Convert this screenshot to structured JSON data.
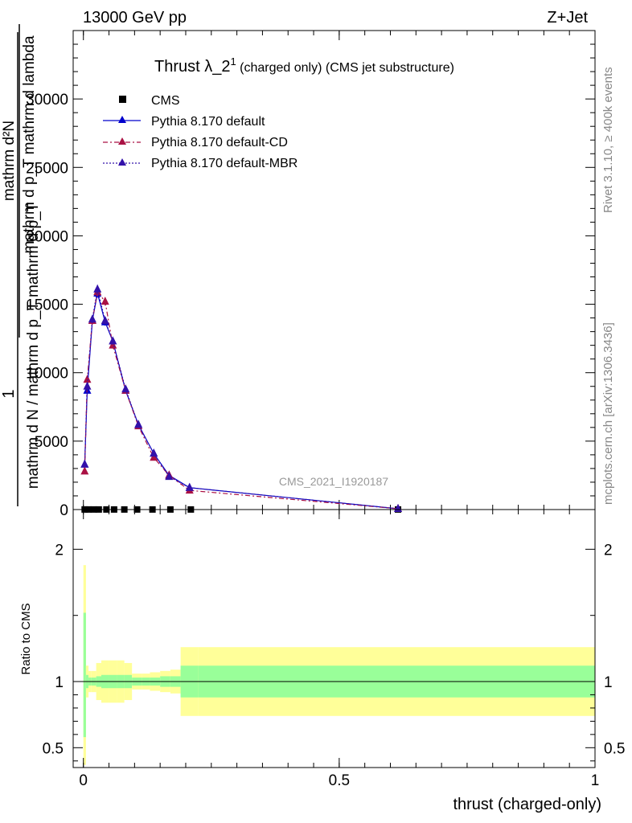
{
  "header": {
    "energy_label": "13000 GeV pp",
    "process_label": "Z+Jet"
  },
  "side_labels": {
    "rivet": "Rivet 3.1.10, ≥ 400k events",
    "mcplots": "mcplots.cern.ch [arXiv:1306.3436]"
  },
  "watermark": "CMS_2021_I1920187",
  "colors": {
    "cms": "#000000",
    "default": "#0000cc",
    "default_cd": "#aa1144",
    "default_mbr": "#3311aa",
    "band_inner": "#99ff99",
    "band_outer": "#ffff99"
  },
  "chart_data": [
    {
      "type": "line",
      "title": {
        "main": "Thrust λ_2",
        "sup": "1",
        "sub": " (charged only) (CMS jet substructure)"
      },
      "ylabel": {
        "line1": "1",
        "line2": "mathrm d N / mathrm d p_T mathrm d p_T",
        "line3": "mathrm d²N",
        "line4": "mathrm d p_T mathrm d lambda"
      },
      "xlim": [
        -0.02,
        1.0
      ],
      "ylim": [
        0,
        35000
      ],
      "yticks": [
        0,
        5000,
        10000,
        15000,
        20000,
        25000,
        30000
      ],
      "ytick_labels": [
        "0",
        "5000",
        "10000",
        "15000",
        "20000",
        "25000",
        "30000"
      ],
      "legend": {
        "position": "top-left",
        "entries": [
          "CMS",
          "Pythia 8.170 default",
          "Pythia 8.170 default-CD",
          "Pythia 8.170 default-MBR"
        ]
      },
      "series": [
        {
          "name": "CMS",
          "x": [
            0.0025,
            0.01,
            0.02,
            0.03,
            0.045,
            0.06,
            0.08,
            0.105,
            0.135,
            0.17,
            0.21,
            0.615
          ],
          "values": [
            5,
            5,
            5,
            5,
            5,
            5,
            5,
            5,
            5,
            5,
            5,
            5
          ]
        },
        {
          "name": "Pythia 8.170 default",
          "x": [
            0.0025,
            0.0075,
            0.0175,
            0.0275,
            0.0425,
            0.0575,
            0.0825,
            0.1075,
            0.1375,
            0.1675,
            0.2075,
            0.615
          ],
          "values": [
            3300,
            8700,
            13800,
            15800,
            13700,
            12300,
            8700,
            6200,
            4100,
            2500,
            1600,
            60
          ]
        },
        {
          "name": "Pythia 8.170 default-CD",
          "x": [
            0.0025,
            0.0075,
            0.0175,
            0.0275,
            0.0425,
            0.0575,
            0.0825,
            0.1075,
            0.1375,
            0.1675,
            0.2075,
            0.615
          ],
          "values": [
            2800,
            9500,
            13800,
            15900,
            15200,
            12000,
            8700,
            6100,
            3800,
            2500,
            1400,
            60
          ]
        },
        {
          "name": "Pythia 8.170 default-MBR",
          "x": [
            0.0025,
            0.0075,
            0.0175,
            0.0275,
            0.0425,
            0.0575,
            0.0825,
            0.1075,
            0.1375,
            0.1675,
            0.2075,
            0.615
          ],
          "values": [
            3300,
            9000,
            13900,
            16100,
            13800,
            12300,
            8800,
            6200,
            4100,
            2400,
            1600,
            60
          ]
        }
      ]
    },
    {
      "type": "area",
      "ylabel": "Ratio to CMS",
      "xlabel": "thrust (charged-only)",
      "xlim": [
        -0.02,
        1.0
      ],
      "ylim": [
        0.35,
        2.3
      ],
      "xticks": [
        0,
        0.5,
        1
      ],
      "xtick_labels": [
        "0",
        "0.5",
        "1"
      ],
      "yticks": [
        0.5,
        1,
        2
      ],
      "ytick_labels": [
        "0.5",
        "1",
        "2"
      ],
      "bins": [
        0,
        0.005,
        0.01,
        0.015,
        0.025,
        0.035,
        0.05,
        0.065,
        0.08,
        0.095,
        0.115,
        0.13,
        0.15,
        0.17,
        0.19,
        0.225,
        1.0
      ],
      "band_inner_low": [
        0.58,
        0.95,
        0.97,
        0.97,
        0.96,
        0.95,
        0.95,
        0.95,
        0.95,
        0.97,
        0.97,
        0.97,
        0.96,
        0.96,
        0.88,
        0.88
      ],
      "band_inner_high": [
        1.52,
        1.05,
        1.03,
        1.03,
        1.04,
        1.05,
        1.05,
        1.05,
        1.05,
        1.03,
        1.03,
        1.03,
        1.04,
        1.04,
        1.12,
        1.12
      ],
      "band_outer_low": [
        0.37,
        0.88,
        0.92,
        0.92,
        0.86,
        0.84,
        0.84,
        0.84,
        0.86,
        0.94,
        0.94,
        0.93,
        0.92,
        0.91,
        0.74,
        0.74
      ],
      "band_outer_high": [
        1.88,
        1.12,
        1.08,
        1.08,
        1.14,
        1.16,
        1.16,
        1.16,
        1.14,
        1.06,
        1.06,
        1.07,
        1.08,
        1.09,
        1.26,
        1.26
      ],
      "reference": 1.0
    }
  ]
}
